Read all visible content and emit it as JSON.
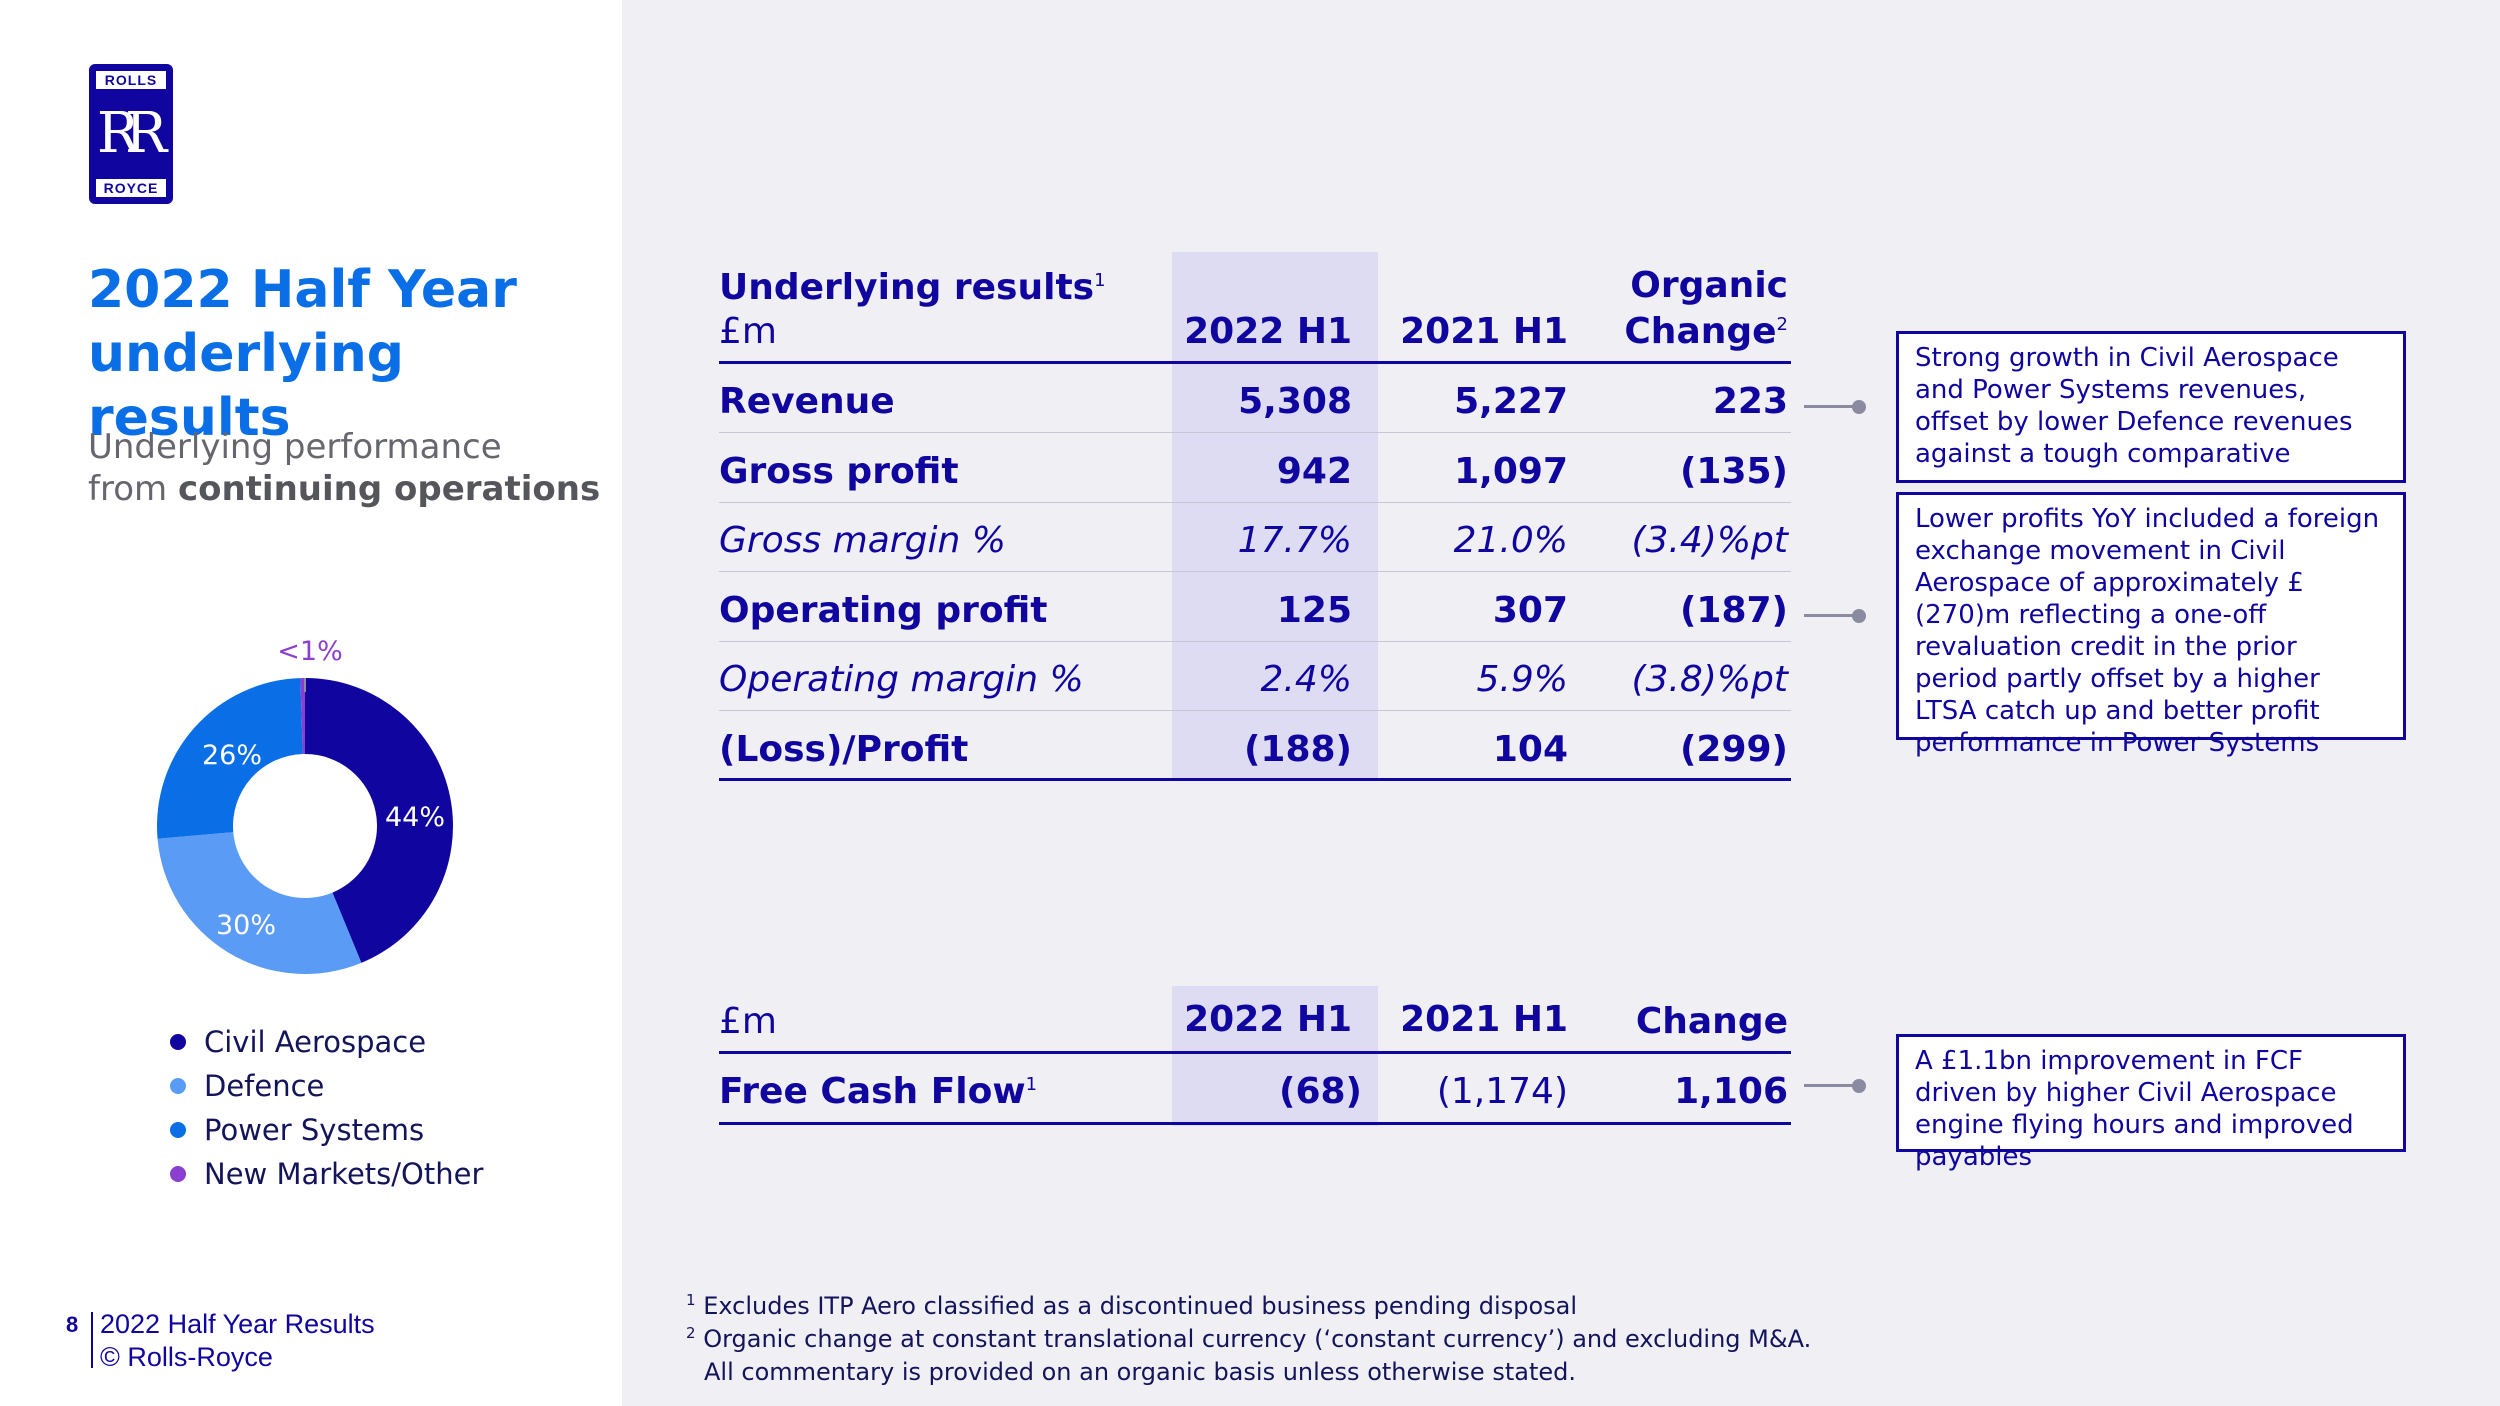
{
  "logo": {
    "top": "ROLLS",
    "mark": "RR",
    "bottom": "ROYCE"
  },
  "title_line1": "2022 Half Year",
  "title_line2": "underlying results",
  "subtitle_line1": "Underlying performance",
  "subtitle_prefix": "from ",
  "subtitle_bold": "continuing operations",
  "donut": {
    "labels": {
      "other": "<1%",
      "power": "26%",
      "civil": "44%",
      "defence": "30%"
    }
  },
  "chart_data": {
    "type": "pie",
    "style": "donut",
    "categories": [
      "Civil Aerospace",
      "Defence",
      "Power Systems",
      "New Markets/Other"
    ],
    "values": [
      44,
      30,
      26,
      0.5
    ],
    "value_labels": [
      "44%",
      "30%",
      "26%",
      "<1%"
    ],
    "colors": [
      "#10069f",
      "#5a9cf5",
      "#0a6ee6",
      "#8a3fd1"
    ]
  },
  "legend": [
    {
      "label": "Civil Aerospace",
      "color": "#10069f"
    },
    {
      "label": "Defence",
      "color": "#5a9cf5"
    },
    {
      "label": "Power Systems",
      "color": "#0a6ee6"
    },
    {
      "label": "New Markets/Other",
      "color": "#8a3fd1"
    }
  ],
  "footer": {
    "page": "8",
    "line1": "2022 Half Year Results",
    "line2": "© Rolls-Royce"
  },
  "table1": {
    "header": {
      "label1": "Underlying results",
      "label1_sup": "1",
      "label2": "£m",
      "col1": "2022 H1",
      "col2": "2021 H1",
      "col3_line1": "Organic",
      "col3_line2": "Change",
      "col3_sup": "2"
    },
    "rows": [
      {
        "label": "Revenue",
        "v1": "5,308",
        "v2": "5,227",
        "v3": "223"
      },
      {
        "label": "Gross profit",
        "v1": "942",
        "v2": "1,097",
        "v3": "(135)"
      },
      {
        "label": "Gross margin %",
        "v1": "17.7%",
        "v2": "21.0%",
        "v3": "(3.4)%pt"
      },
      {
        "label": "Operating profit",
        "v1": "125",
        "v2": "307",
        "v3": "(187)"
      },
      {
        "label": "Operating margin %",
        "v1": "2.4%",
        "v2": "5.9%",
        "v3": "(3.8)%pt"
      },
      {
        "label": "(Loss)/Profit",
        "v1": "(188)",
        "v2": "104",
        "v3": "(299)"
      }
    ]
  },
  "table2": {
    "header": {
      "label": "£m",
      "col1": "2022 H1",
      "col2": "2021 H1",
      "col3": "Change"
    },
    "row": {
      "label": "Free Cash Flow",
      "label_sup": "1",
      "v1": "(68)",
      "v2": "(1,174)",
      "v3": "1,106"
    }
  },
  "callouts": [
    "Strong growth in Civil Aerospace and Power Systems revenues, offset by lower Defence revenues against a tough comparative",
    "Lower profits YoY included a foreign exchange movement in Civil Aerospace of approximately £(270)m reflecting a one-off revaluation credit in the prior period partly offset by a higher LTSA catch up and better profit performance in Power Systems",
    "A £1.1bn improvement in FCF driven by higher Civil Aerospace engine flying hours and improved payables"
  ],
  "footnotes": {
    "n1_sup": "1",
    "n1": "Excludes ITP Aero classified as a discontinued business pending disposal",
    "n2_sup": "2",
    "n2": "Organic change at constant translational currency (‘constant currency’) and excluding M&A.",
    "n3": "All commentary is provided on an organic basis unless otherwise stated."
  }
}
